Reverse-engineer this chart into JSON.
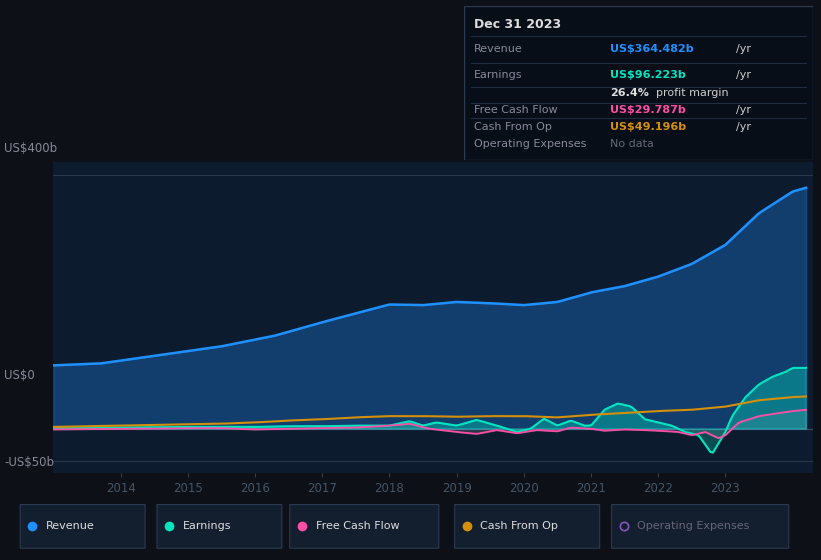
{
  "bg_color": "#0d1117",
  "plot_bg_color": "#0d1b2e",
  "ylabel_400": "US$400b",
  "ylabel_0": "US$0",
  "ylabel_neg50": "-US$50b",
  "x_ticks": [
    2014,
    2015,
    2016,
    2017,
    2018,
    2019,
    2020,
    2021,
    2022,
    2023
  ],
  "xlim": [
    2013.0,
    2024.3
  ],
  "ylim": [
    -70,
    420
  ],
  "colors": {
    "revenue": "#1e90ff",
    "earnings": "#00e5c0",
    "free_cash_flow": "#ff4da6",
    "cash_from_op": "#d4900a",
    "operating_expenses": "#8855bb"
  },
  "tooltip": {
    "date": "Dec 31 2023",
    "revenue_label": "Revenue",
    "revenue_val": "US$364.482b",
    "earnings_label": "Earnings",
    "earnings_val": "US$96.223b",
    "margin_pct": "26.4%",
    "margin_text": "profit margin",
    "fcf_label": "Free Cash Flow",
    "fcf_val": "US$29.787b",
    "cfop_label": "Cash From Op",
    "cfop_val": "US$49.196b",
    "opex_label": "Operating Expenses",
    "opex_val": "No data"
  }
}
